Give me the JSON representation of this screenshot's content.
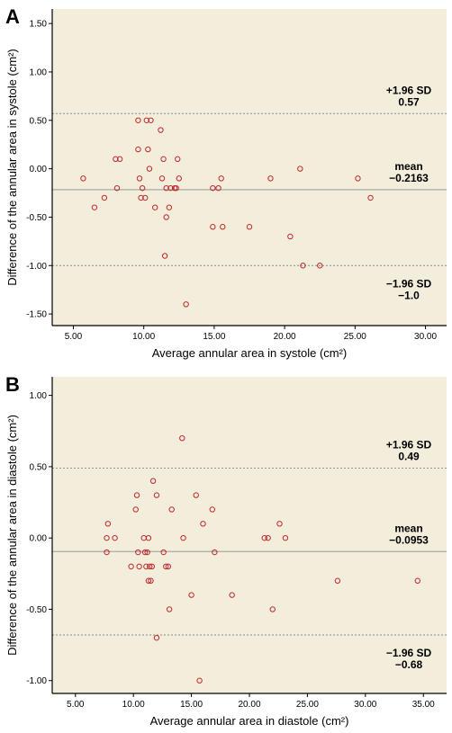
{
  "chart_data": [
    {
      "type": "scatter",
      "panel_label": "A",
      "xlabel": "Average annular area in systole (cm²)",
      "ylabel": "Difference of the annular area in systole (cm²)",
      "xlim": [
        3.5,
        31.5
      ],
      "ylim": [
        -1.62,
        1.65
      ],
      "x_ticks": [
        5,
        10,
        15,
        20,
        25,
        30
      ],
      "x_tick_labels": [
        "5.00",
        "10.00",
        "15.00",
        "20.00",
        "25.00",
        "30.00"
      ],
      "y_ticks": [
        1.5,
        1.0,
        0.5,
        0.0,
        -0.5,
        -1.0,
        -1.5
      ],
      "y_tick_labels": [
        "1.50",
        "1.00",
        "0.50",
        "0.00",
        "-0.50",
        "-1.00",
        "-1.50"
      ],
      "grid": false,
      "marker_color": "#c0262c",
      "plot_background": "#f3eedb",
      "reference_lines": {
        "upper": {
          "value": 0.57,
          "line1": "+1.96 SD",
          "line2": "0.57"
        },
        "mean": {
          "value": -0.2163,
          "line1": "mean",
          "line2": "−0.2163"
        },
        "lower": {
          "value": -1.0,
          "line1": "−1.96 SD",
          "line2": "−1.0"
        }
      },
      "points": [
        [
          5.7,
          -0.1
        ],
        [
          6.5,
          -0.4
        ],
        [
          7.2,
          -0.3
        ],
        [
          8.0,
          0.1
        ],
        [
          8.3,
          0.1
        ],
        [
          8.1,
          -0.2
        ],
        [
          9.6,
          0.5
        ],
        [
          9.6,
          0.2
        ],
        [
          9.7,
          -0.1
        ],
        [
          9.8,
          -0.3
        ],
        [
          9.9,
          -0.2
        ],
        [
          10.1,
          -0.3
        ],
        [
          10.2,
          0.5
        ],
        [
          10.3,
          0.2
        ],
        [
          10.4,
          0.0
        ],
        [
          10.5,
          0.5
        ],
        [
          10.8,
          -0.4
        ],
        [
          11.2,
          0.4
        ],
        [
          11.3,
          -0.1
        ],
        [
          11.4,
          0.1
        ],
        [
          11.5,
          -0.9
        ],
        [
          11.6,
          -0.5
        ],
        [
          11.6,
          -0.2
        ],
        [
          11.8,
          -0.4
        ],
        [
          11.9,
          -0.2
        ],
        [
          12.2,
          -0.2
        ],
        [
          12.3,
          -0.2
        ],
        [
          12.4,
          0.1
        ],
        [
          12.5,
          -0.1
        ],
        [
          13.0,
          -1.4
        ],
        [
          14.9,
          -0.6
        ],
        [
          14.9,
          -0.2
        ],
        [
          15.3,
          -0.2
        ],
        [
          15.5,
          -0.1
        ],
        [
          15.6,
          -0.6
        ],
        [
          17.5,
          -0.6
        ],
        [
          19.0,
          -0.1
        ],
        [
          20.4,
          -0.7
        ],
        [
          21.1,
          0.0
        ],
        [
          21.3,
          -1.0
        ],
        [
          22.5,
          -1.0
        ],
        [
          25.2,
          -0.1
        ],
        [
          26.1,
          -0.3
        ]
      ]
    },
    {
      "type": "scatter",
      "panel_label": "B",
      "xlabel": "Average annular area in diastole (cm²)",
      "ylabel": "Difference of the annular area in diastole (cm²)",
      "xlim": [
        3.0,
        37.0
      ],
      "ylim": [
        -1.09,
        1.13
      ],
      "x_ticks": [
        5,
        10,
        15,
        20,
        25,
        30,
        35
      ],
      "x_tick_labels": [
        "5.00",
        "10.00",
        "15.00",
        "20.00",
        "25.00",
        "30.00",
        "35.00"
      ],
      "y_ticks": [
        1.0,
        0.5,
        0.0,
        -0.5,
        -1.0
      ],
      "y_tick_labels": [
        "1.00",
        "0.50",
        "0.00",
        "-0.50",
        "-1.00"
      ],
      "grid": false,
      "marker_color": "#c0262c",
      "plot_background": "#f3eedb",
      "reference_lines": {
        "upper": {
          "value": 0.49,
          "line1": "+1.96 SD",
          "line2": "0.49"
        },
        "mean": {
          "value": -0.0953,
          "line1": "mean",
          "line2": "−0.0953"
        },
        "lower": {
          "value": -0.68,
          "line1": "−1.96 SD",
          "line2": "−0.68"
        }
      },
      "points": [
        [
          7.7,
          0.0
        ],
        [
          7.7,
          -0.1
        ],
        [
          7.8,
          0.1
        ],
        [
          8.4,
          0.0
        ],
        [
          9.8,
          -0.2
        ],
        [
          10.2,
          0.2
        ],
        [
          10.3,
          0.3
        ],
        [
          10.4,
          -0.1
        ],
        [
          10.5,
          -0.2
        ],
        [
          10.9,
          0.0
        ],
        [
          11.0,
          -0.1
        ],
        [
          11.1,
          -0.2
        ],
        [
          11.2,
          -0.1
        ],
        [
          11.3,
          -0.3
        ],
        [
          11.3,
          0.0
        ],
        [
          11.4,
          -0.2
        ],
        [
          11.5,
          -0.3
        ],
        [
          11.6,
          -0.2
        ],
        [
          11.7,
          0.4
        ],
        [
          12.0,
          0.3
        ],
        [
          12.0,
          -0.7
        ],
        [
          12.6,
          -0.1
        ],
        [
          12.8,
          -0.2
        ],
        [
          13.0,
          -0.2
        ],
        [
          13.1,
          -0.5
        ],
        [
          13.3,
          0.2
        ],
        [
          14.2,
          0.7
        ],
        [
          14.3,
          0.0
        ],
        [
          15.0,
          -0.4
        ],
        [
          15.4,
          0.3
        ],
        [
          15.7,
          -1.0
        ],
        [
          16.0,
          0.1
        ],
        [
          16.8,
          0.2
        ],
        [
          17.0,
          -0.1
        ],
        [
          18.5,
          -0.4
        ],
        [
          21.3,
          0.0
        ],
        [
          21.6,
          0.0
        ],
        [
          22.0,
          -0.5
        ],
        [
          22.6,
          0.1
        ],
        [
          23.1,
          0.0
        ],
        [
          27.6,
          -0.3
        ],
        [
          34.5,
          -0.3
        ]
      ]
    }
  ]
}
